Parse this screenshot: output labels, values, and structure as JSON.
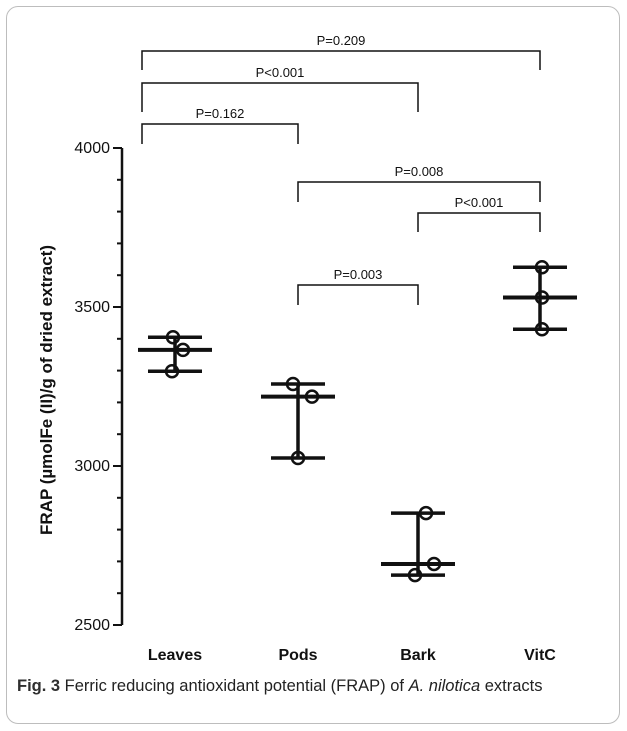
{
  "chart_data": {
    "type": "scatter",
    "ylabel": "FRAP (µmolFe (II)/g of dried extract)",
    "xlabel": "",
    "ylim": [
      2500,
      4000
    ],
    "yticks": [
      2500,
      3000,
      3500,
      4000
    ],
    "categories": [
      "Leaves",
      "Pods",
      "Bark",
      "VitC"
    ],
    "points": [
      [
        3405,
        3365,
        3298
      ],
      [
        3258,
        3218,
        3025
      ],
      [
        2852,
        2692,
        2657
      ],
      [
        3625,
        3530,
        3430
      ]
    ],
    "summary": [
      {
        "median": 3365,
        "low": 3298,
        "high": 3405
      },
      {
        "median": 3218,
        "low": 3025,
        "high": 3258
      },
      {
        "median": 2692,
        "low": 2657,
        "high": 2852
      },
      {
        "median": 3530,
        "low": 3430,
        "high": 3625
      }
    ],
    "comparisons": [
      {
        "from": 0,
        "to": 3,
        "label": "P=0.209"
      },
      {
        "from": 0,
        "to": 2,
        "label": "P<0.001"
      },
      {
        "from": 0,
        "to": 1,
        "label": "P=0.162"
      },
      {
        "from": 1,
        "to": 3,
        "label": "P=0.008"
      },
      {
        "from": 2,
        "to": 3,
        "label": "P<0.001"
      },
      {
        "from": 1,
        "to": 2,
        "label": "P=0.003"
      }
    ]
  },
  "caption": {
    "label": "Fig. 3",
    "text_before": " Ferric reducing antioxidant potential (FRAP) of ",
    "species": "A. nilotica",
    "text_after": " extracts"
  }
}
